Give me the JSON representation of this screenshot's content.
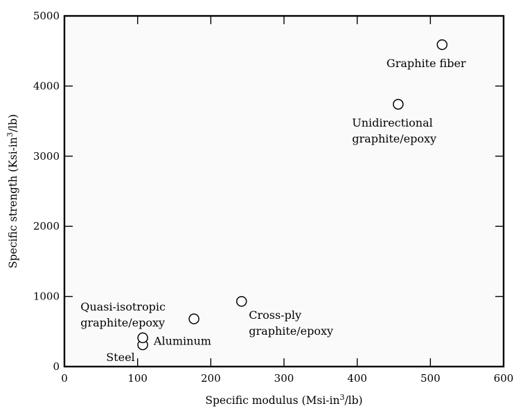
{
  "chart_data": {
    "type": "scatter",
    "title": "",
    "xlabel": {
      "text": "Specific modulus (Msi-in",
      "sup": "3",
      "tail": "/lb)"
    },
    "ylabel": {
      "text": "Specific strength (Ksi-in",
      "sup": "3",
      "tail": "/lb)"
    },
    "xlim": [
      0,
      600
    ],
    "ylim": [
      0,
      5000
    ],
    "xticks": [
      0,
      100,
      200,
      300,
      400,
      500,
      600
    ],
    "yticks": [
      0,
      1000,
      2000,
      3000,
      4000,
      5000
    ],
    "grid": false,
    "points": [
      {
        "x": 107,
        "y": 310
      },
      {
        "x": 107,
        "y": 410
      },
      {
        "x": 177,
        "y": 680
      },
      {
        "x": 242,
        "y": 930
      },
      {
        "x": 456,
        "y": 3740
      },
      {
        "x": 516,
        "y": 4590
      }
    ],
    "annotations": [
      {
        "lines": [
          "Graphite fiber"
        ],
        "x": 440,
        "y": 4270
      },
      {
        "lines": [
          "Unidirectional",
          "graphite/epoxy"
        ],
        "x": 393,
        "y": 3420
      },
      {
        "lines": [
          "Cross-ply",
          "graphite/epoxy"
        ],
        "x": 252,
        "y": 680
      },
      {
        "lines": [
          "Quasi-isotropic",
          "graphite/epoxy"
        ],
        "x": 22,
        "y": 800
      },
      {
        "lines": [
          "Aluminum"
        ],
        "x": 122,
        "y": 310
      },
      {
        "lines": [
          "Steel"
        ],
        "x": 57,
        "y": 80
      }
    ]
  }
}
